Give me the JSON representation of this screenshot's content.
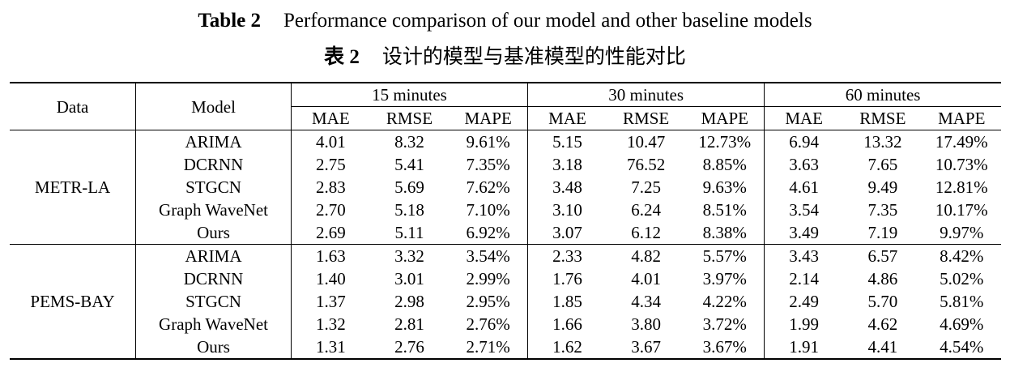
{
  "caption": {
    "en_label": "Table 2",
    "en_text": "Performance comparison of our model and other baseline models",
    "zh_label": "表 2",
    "zh_text": "设计的模型与基准模型的性能对比"
  },
  "table": {
    "data_header": "Data",
    "model_header": "Model",
    "horizons": [
      "15 minutes",
      "30 minutes",
      "60 minutes"
    ],
    "metrics": [
      "MAE",
      "RMSE",
      "MAPE"
    ],
    "groups": [
      {
        "dataset": "METR-LA",
        "rows": [
          {
            "model": "ARIMA",
            "values": [
              "4.01",
              "8.32",
              "9.61%",
              "5.15",
              "10.47",
              "12.73%",
              "6.94",
              "13.32",
              "17.49%"
            ]
          },
          {
            "model": "DCRNN",
            "values": [
              "2.75",
              "5.41",
              "7.35%",
              "3.18",
              "76.52",
              "8.85%",
              "3.63",
              "7.65",
              "10.73%"
            ]
          },
          {
            "model": "STGCN",
            "values": [
              "2.83",
              "5.69",
              "7.62%",
              "3.48",
              "7.25",
              "9.63%",
              "4.61",
              "9.49",
              "12.81%"
            ]
          },
          {
            "model": "Graph WaveNet",
            "values": [
              "2.70",
              "5.18",
              "7.10%",
              "3.10",
              "6.24",
              "8.51%",
              "3.54",
              "7.35",
              "10.17%"
            ]
          },
          {
            "model": "Ours",
            "values": [
              "2.69",
              "5.11",
              "6.92%",
              "3.07",
              "6.12",
              "8.38%",
              "3.49",
              "7.19",
              "9.97%"
            ]
          }
        ]
      },
      {
        "dataset": "PEMS-BAY",
        "rows": [
          {
            "model": "ARIMA",
            "values": [
              "1.63",
              "3.32",
              "3.54%",
              "2.33",
              "4.82",
              "5.57%",
              "3.43",
              "6.57",
              "8.42%"
            ]
          },
          {
            "model": "DCRNN",
            "values": [
              "1.40",
              "3.01",
              "2.99%",
              "1.76",
              "4.01",
              "3.97%",
              "2.14",
              "4.86",
              "5.02%"
            ]
          },
          {
            "model": "STGCN",
            "values": [
              "1.37",
              "2.98",
              "2.95%",
              "1.85",
              "4.34",
              "4.22%",
              "2.49",
              "5.70",
              "5.81%"
            ]
          },
          {
            "model": "Graph WaveNet",
            "values": [
              "1.32",
              "2.81",
              "2.76%",
              "1.66",
              "3.80",
              "3.72%",
              "1.99",
              "4.62",
              "4.69%"
            ]
          },
          {
            "model": "Ours",
            "values": [
              "1.31",
              "2.76",
              "2.71%",
              "1.62",
              "3.67",
              "3.67%",
              "1.91",
              "4.41",
              "4.54%"
            ]
          }
        ]
      }
    ]
  }
}
